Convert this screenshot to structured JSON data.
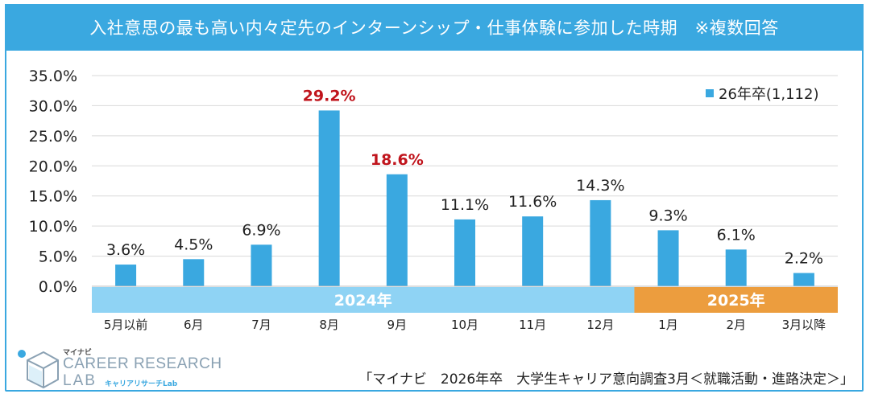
{
  "title": "入社意思の最も高い内々定先のインターンシップ・仕事体験に参加した時期　※複数回答",
  "chart_data": {
    "type": "bar",
    "categories": [
      "5月以前",
      "6月",
      "7月",
      "8月",
      "9月",
      "10月",
      "11月",
      "12月",
      "1月",
      "2月",
      "3月以降"
    ],
    "series": [
      {
        "name": "26年卒(1,112)",
        "values": [
          3.6,
          4.5,
          6.9,
          29.2,
          18.6,
          11.1,
          11.6,
          14.3,
          9.3,
          6.1,
          2.2
        ],
        "data_labels": [
          "3.6%",
          "4.5%",
          "6.9%",
          "29.2%",
          "18.6%",
          "11.1%",
          "11.6%",
          "14.3%",
          "9.3%",
          "6.1%",
          "2.2%"
        ],
        "highlighted_labels": [
          3,
          4
        ]
      }
    ],
    "ylim": [
      0,
      35
    ],
    "y_ticks": [
      "0.0%",
      "5.0%",
      "10.0%",
      "15.0%",
      "20.0%",
      "25.0%",
      "30.0%",
      "35.0%"
    ],
    "grid": true,
    "legend_position": "top-right",
    "year_bands": [
      {
        "label": "2024年",
        "start_index": 0,
        "end_index": 7
      },
      {
        "label": "2025年",
        "start_index": 8,
        "end_index": 10
      }
    ]
  },
  "colors": {
    "bar": "#3aa8e0",
    "highlight_label": "#c0141c",
    "band_2024": "#8fd3f4",
    "band_2025": "#ec9d3e",
    "grid": "#d9d9d9",
    "title_bg": "#3aa8e0"
  },
  "logo": {
    "brand": "マイナビ",
    "line1": "CAREER RESEARCH",
    "line2": "LAB",
    "sub": "キャリアリサーチLab"
  },
  "source": "「マイナビ　2026年卒　大学生キャリア意向調査3月＜就職活動・進路決定＞」"
}
